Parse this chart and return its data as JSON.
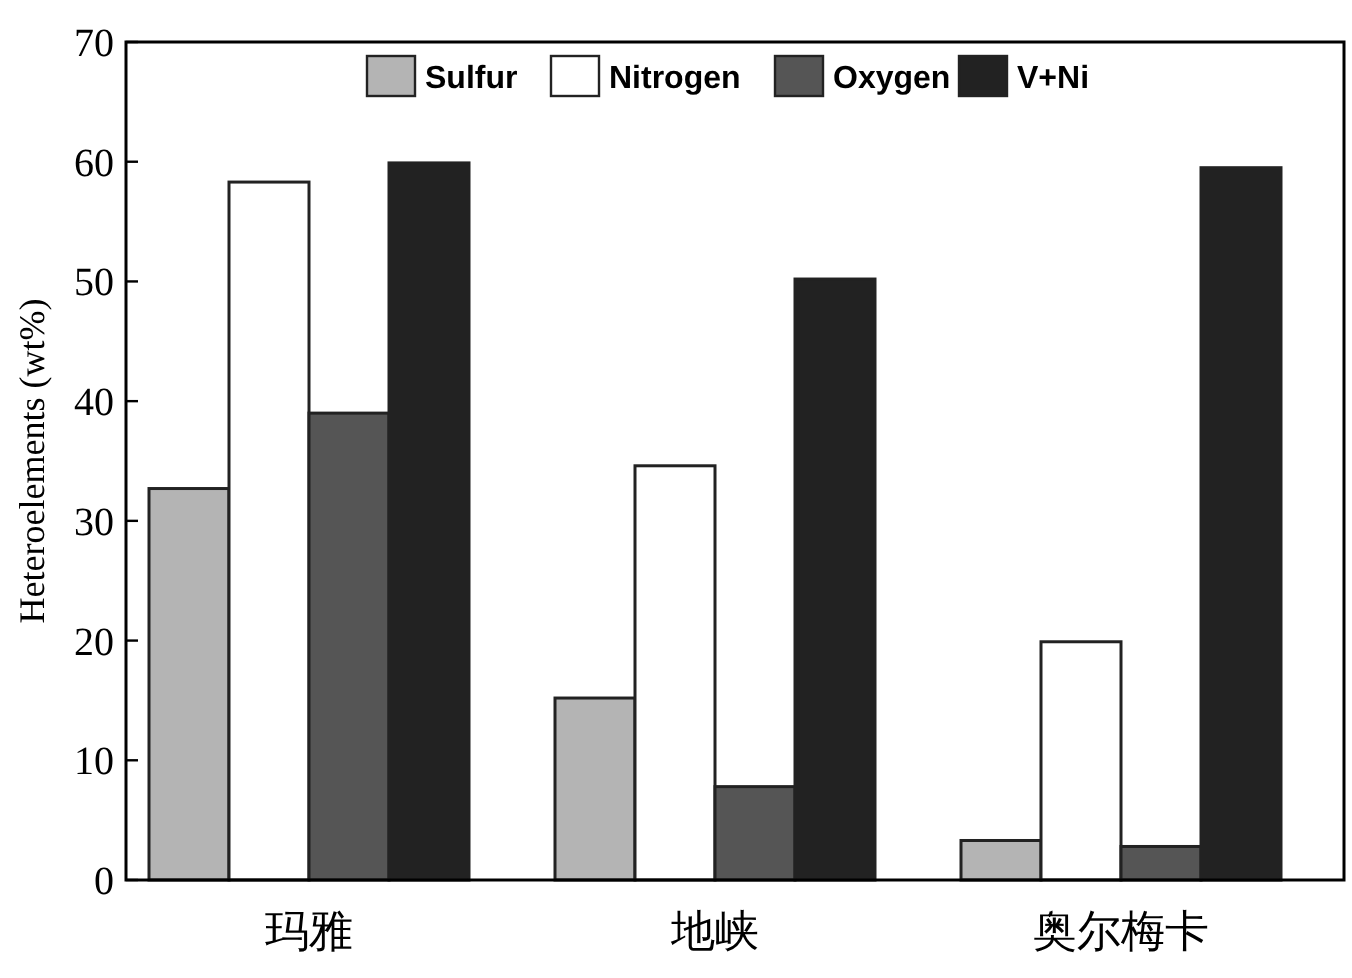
{
  "chart_data": {
    "type": "bar",
    "ylabel": "Heteroelements (wt%)",
    "categories": [
      "玛雅",
      "地峡",
      "奥尔梅卡"
    ],
    "series": [
      {
        "name": "Sulfur",
        "color": "#b4b4b4",
        "values": [
          32.7,
          15.2,
          3.3
        ]
      },
      {
        "name": "Nitrogen",
        "color": "#ffffff",
        "values": [
          58.3,
          34.6,
          19.9
        ]
      },
      {
        "name": "Oxygen",
        "color": "#555555",
        "values": [
          39,
          7.8,
          2.8
        ]
      },
      {
        "name": "V+Ni",
        "color": "#222222",
        "values": [
          59.9,
          50.2,
          59.5
        ]
      }
    ],
    "ylim": [
      0,
      70
    ],
    "yticks": [
      0,
      10,
      20,
      30,
      40,
      50,
      60,
      70
    ],
    "grid": false,
    "legend": "top"
  }
}
